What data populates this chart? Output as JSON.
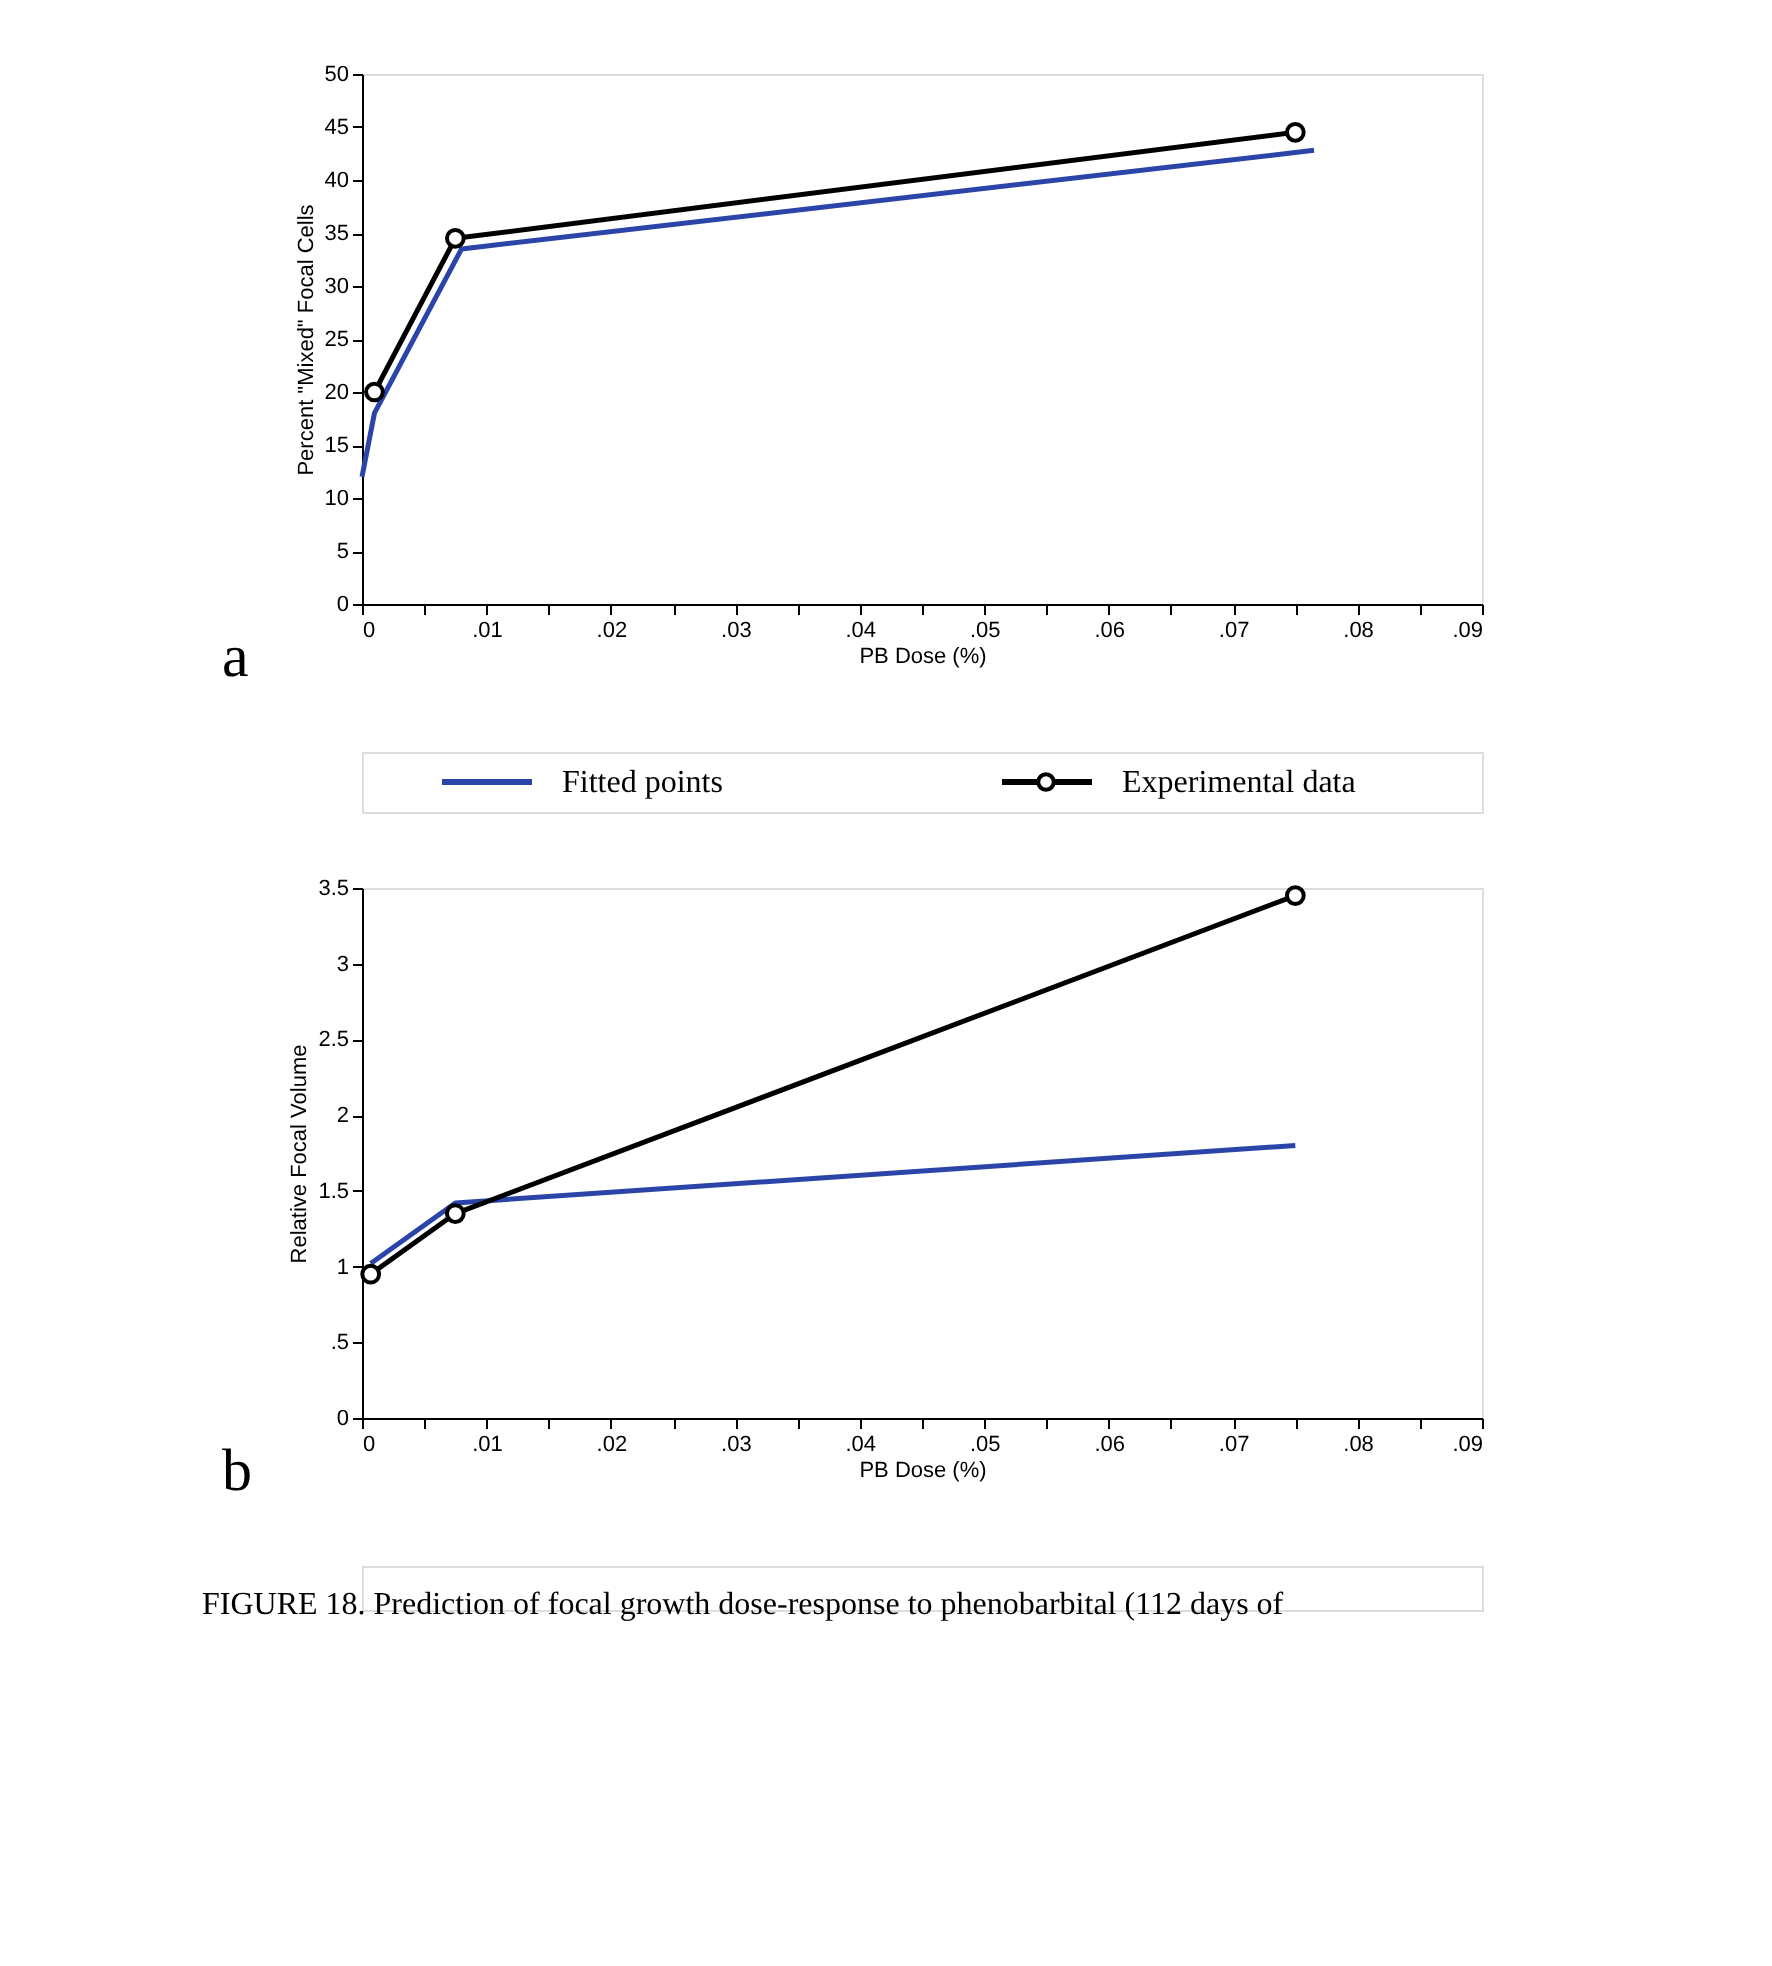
{
  "chart_data": [
    {
      "type": "line",
      "xlabel": "PB Dose (%)",
      "ylabel": "Percent \"Mixed\" Focal Cells",
      "xlim": [
        0,
        0.09
      ],
      "ylim": [
        0,
        50
      ],
      "xticks": [
        {
          "value": 0,
          "label": "0"
        },
        {
          "value": 0.005,
          "label": null
        },
        {
          "value": 0.01,
          "label": ".01"
        },
        {
          "value": 0.015,
          "label": null
        },
        {
          "value": 0.02,
          "label": ".02"
        },
        {
          "value": 0.025,
          "label": null
        },
        {
          "value": 0.03,
          "label": ".03"
        },
        {
          "value": 0.035,
          "label": null
        },
        {
          "value": 0.04,
          "label": ".04"
        },
        {
          "value": 0.045,
          "label": null
        },
        {
          "value": 0.05,
          "label": ".05"
        },
        {
          "value": 0.055,
          "label": null
        },
        {
          "value": 0.06,
          "label": ".06"
        },
        {
          "value": 0.065,
          "label": null
        },
        {
          "value": 0.07,
          "label": ".07"
        },
        {
          "value": 0.075,
          "label": null
        },
        {
          "value": 0.08,
          "label": ".08"
        },
        {
          "value": 0.085,
          "label": null
        },
        {
          "value": 0.09,
          "label": ".09"
        }
      ],
      "yticks": [
        0,
        5,
        10,
        15,
        20,
        25,
        30,
        35,
        40,
        45,
        50
      ],
      "grid": false,
      "legend": "bottom",
      "line_style": "solid",
      "annotations": [
        "a"
      ],
      "series": [
        {
          "name": "Fitted points",
          "color": "#2b44a8",
          "marker": "none",
          "x": [
            0,
            0.001,
            0.008,
            0.0765
          ],
          "values": [
            12,
            18,
            33.5,
            42.8
          ]
        },
        {
          "name": "Experimental data",
          "color": "#000000",
          "marker": "circle",
          "x": [
            0.001,
            0.0075,
            0.075
          ],
          "values": [
            20,
            34.5,
            44.5
          ]
        }
      ]
    },
    {
      "type": "line",
      "xlabel": "PB Dose (%)",
      "ylabel": "Relative Focal Volume",
      "xlim": [
        0,
        0.09
      ],
      "ylim": [
        0,
        3.5
      ],
      "xticks": [
        {
          "value": 0,
          "label": "0"
        },
        {
          "value": 0.005,
          "label": null
        },
        {
          "value": 0.01,
          "label": ".01"
        },
        {
          "value": 0.015,
          "label": null
        },
        {
          "value": 0.02,
          "label": ".02"
        },
        {
          "value": 0.025,
          "label": null
        },
        {
          "value": 0.03,
          "label": ".03"
        },
        {
          "value": 0.035,
          "label": null
        },
        {
          "value": 0.04,
          "label": ".04"
        },
        {
          "value": 0.045,
          "label": null
        },
        {
          "value": 0.05,
          "label": ".05"
        },
        {
          "value": 0.055,
          "label": null
        },
        {
          "value": 0.06,
          "label": ".06"
        },
        {
          "value": 0.065,
          "label": null
        },
        {
          "value": 0.07,
          "label": ".07"
        },
        {
          "value": 0.075,
          "label": null
        },
        {
          "value": 0.08,
          "label": ".08"
        },
        {
          "value": 0.085,
          "label": null
        },
        {
          "value": 0.09,
          "label": ".09"
        }
      ],
      "yticks": [
        0,
        {
          "value": 0.5,
          "label": ".5"
        },
        1,
        1.5,
        2,
        2.5,
        3,
        3.5
      ],
      "grid": false,
      "line_style": "solid",
      "annotations": [
        "b",
        "FIGURE 18.  Prediction of focal growth dose-response to phenobarbital (112 days of"
      ],
      "series": [
        {
          "name": "Fitted points",
          "color": "#2b44a8",
          "marker": "none",
          "x": [
            0.0007,
            0.0075,
            0.075
          ],
          "values": [
            1.02,
            1.42,
            1.8
          ]
        },
        {
          "name": "Experimental data",
          "color": "#000000",
          "marker": "circle",
          "x": [
            0.0007,
            0.0075,
            0.075
          ],
          "values": [
            0.95,
            1.35,
            3.45
          ]
        }
      ]
    }
  ]
}
